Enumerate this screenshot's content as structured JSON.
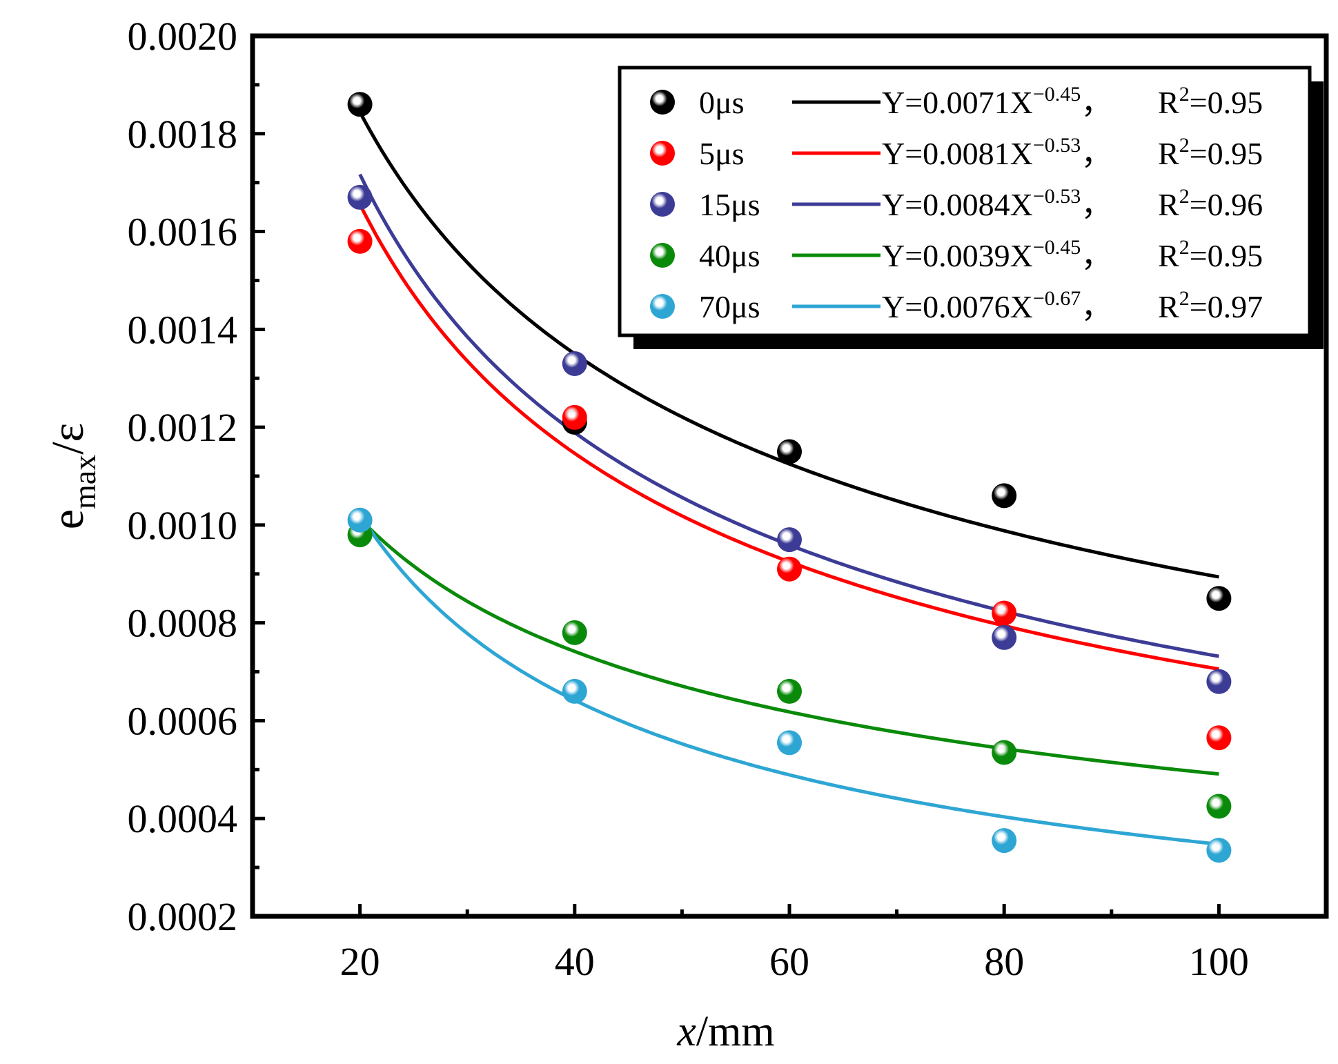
{
  "chart_data": {
    "type": "scatter",
    "title": "",
    "xlabel": {
      "var": "x",
      "unit": "/mm"
    },
    "ylabel": {
      "base": "e",
      "sub": "max",
      "rest": "/ε"
    },
    "xlim": [
      10,
      110
    ],
    "ylim": [
      0.0002,
      0.002
    ],
    "xticks": [
      20,
      40,
      60,
      80,
      100
    ],
    "xtick_labels": [
      "20",
      "40",
      "60",
      "80",
      "100"
    ],
    "yticks": [
      0.0002,
      0.0004,
      0.0006,
      0.0008,
      0.001,
      0.0012,
      0.0014,
      0.0016,
      0.0018,
      0.002
    ],
    "ytick_labels": [
      "0.0002",
      "0.0004",
      "0.0006",
      "0.0008",
      "0.0010",
      "0.0012",
      "0.0014",
      "0.0016",
      "0.0018",
      "0.0020"
    ],
    "grid": false,
    "legend_position": "top-right",
    "x": [
      20,
      40,
      60,
      80,
      100
    ],
    "series": [
      {
        "name": "0μs",
        "color": "#000000",
        "values": [
          0.00186,
          0.00121,
          0.00115,
          0.00106,
          0.00085
        ],
        "fit": {
          "coef": 0.0071,
          "exp": -0.45,
          "label_main": "Y=0.0071X",
          "label_exp": "−0.45",
          "r2_label": "R",
          "r2_sup": "2",
          "r2_value": "=0.95"
        }
      },
      {
        "name": "5μs",
        "color": "#ff0000",
        "values": [
          0.00158,
          0.00122,
          0.00091,
          0.00082,
          0.000565
        ],
        "fit": {
          "coef": 0.0081,
          "exp": -0.53,
          "label_main": "Y=0.0081X",
          "label_exp": "−0.53",
          "r2_label": "R",
          "r2_sup": "2",
          "r2_value": "=0.95"
        }
      },
      {
        "name": "15μs",
        "color": "#3c3c96",
        "values": [
          0.00167,
          0.00133,
          0.00097,
          0.00077,
          0.00068
        ],
        "fit": {
          "coef": 0.0084,
          "exp": -0.53,
          "label_main": "Y=0.0084X",
          "label_exp": "−0.53",
          "r2_label": "R",
          "r2_sup": "2",
          "r2_value": "=0.96"
        }
      },
      {
        "name": "40μs",
        "color": "#0a8a0a",
        "values": [
          0.00098,
          0.00078,
          0.00066,
          0.000535,
          0.000425
        ],
        "fit": {
          "coef": 0.0039,
          "exp": -0.45,
          "label_main": "Y=0.0039X",
          "label_exp": "−0.45",
          "r2_label": "R",
          "r2_sup": "2",
          "r2_value": "=0.95"
        }
      },
      {
        "name": "70μs",
        "color": "#2ea6d4",
        "values": [
          0.00101,
          0.00066,
          0.000555,
          0.000355,
          0.000335
        ],
        "fit": {
          "coef": 0.0076,
          "exp": -0.67,
          "label_main": "Y=0.0076X",
          "label_exp": "−0.67",
          "r2_label": "R",
          "r2_sup": "2",
          "r2_value": "=0.97"
        }
      }
    ]
  }
}
